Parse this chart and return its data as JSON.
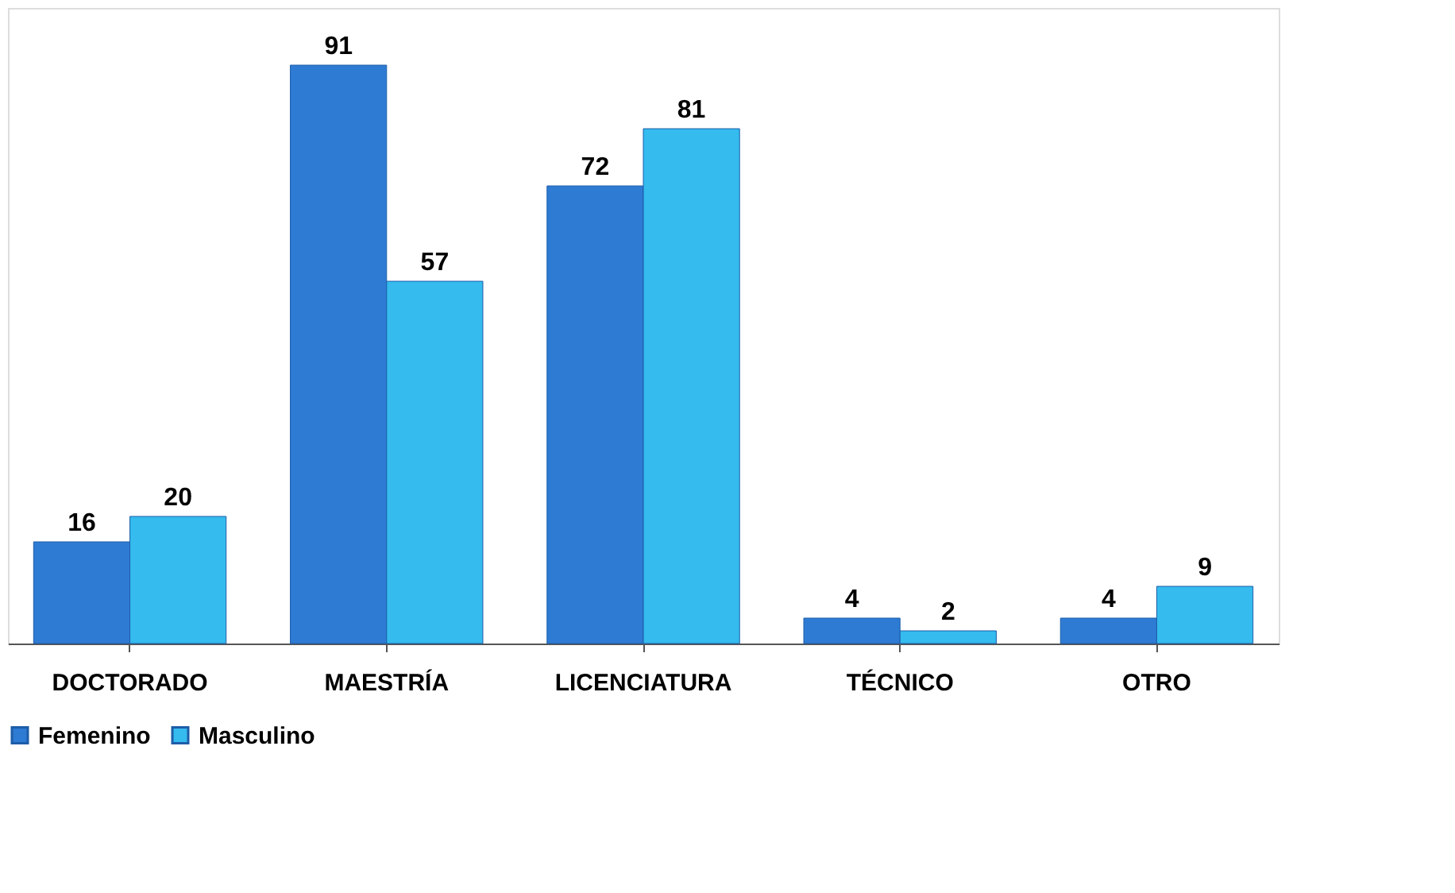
{
  "chart_data": {
    "type": "bar",
    "categories": [
      "DOCTORADO",
      "MAESTRÍA",
      "LICENCIATURA",
      "TÉCNICO",
      "OTRO"
    ],
    "series": [
      {
        "name": "Femenino",
        "color": "#2e7bd4",
        "values": [
          16,
          91,
          72,
          4,
          4
        ]
      },
      {
        "name": "Masculino",
        "color": "#35bbee",
        "values": [
          20,
          57,
          81,
          2,
          9
        ]
      }
    ],
    "data_labels": true,
    "legend": "bottom",
    "tick_labels": "x"
  }
}
